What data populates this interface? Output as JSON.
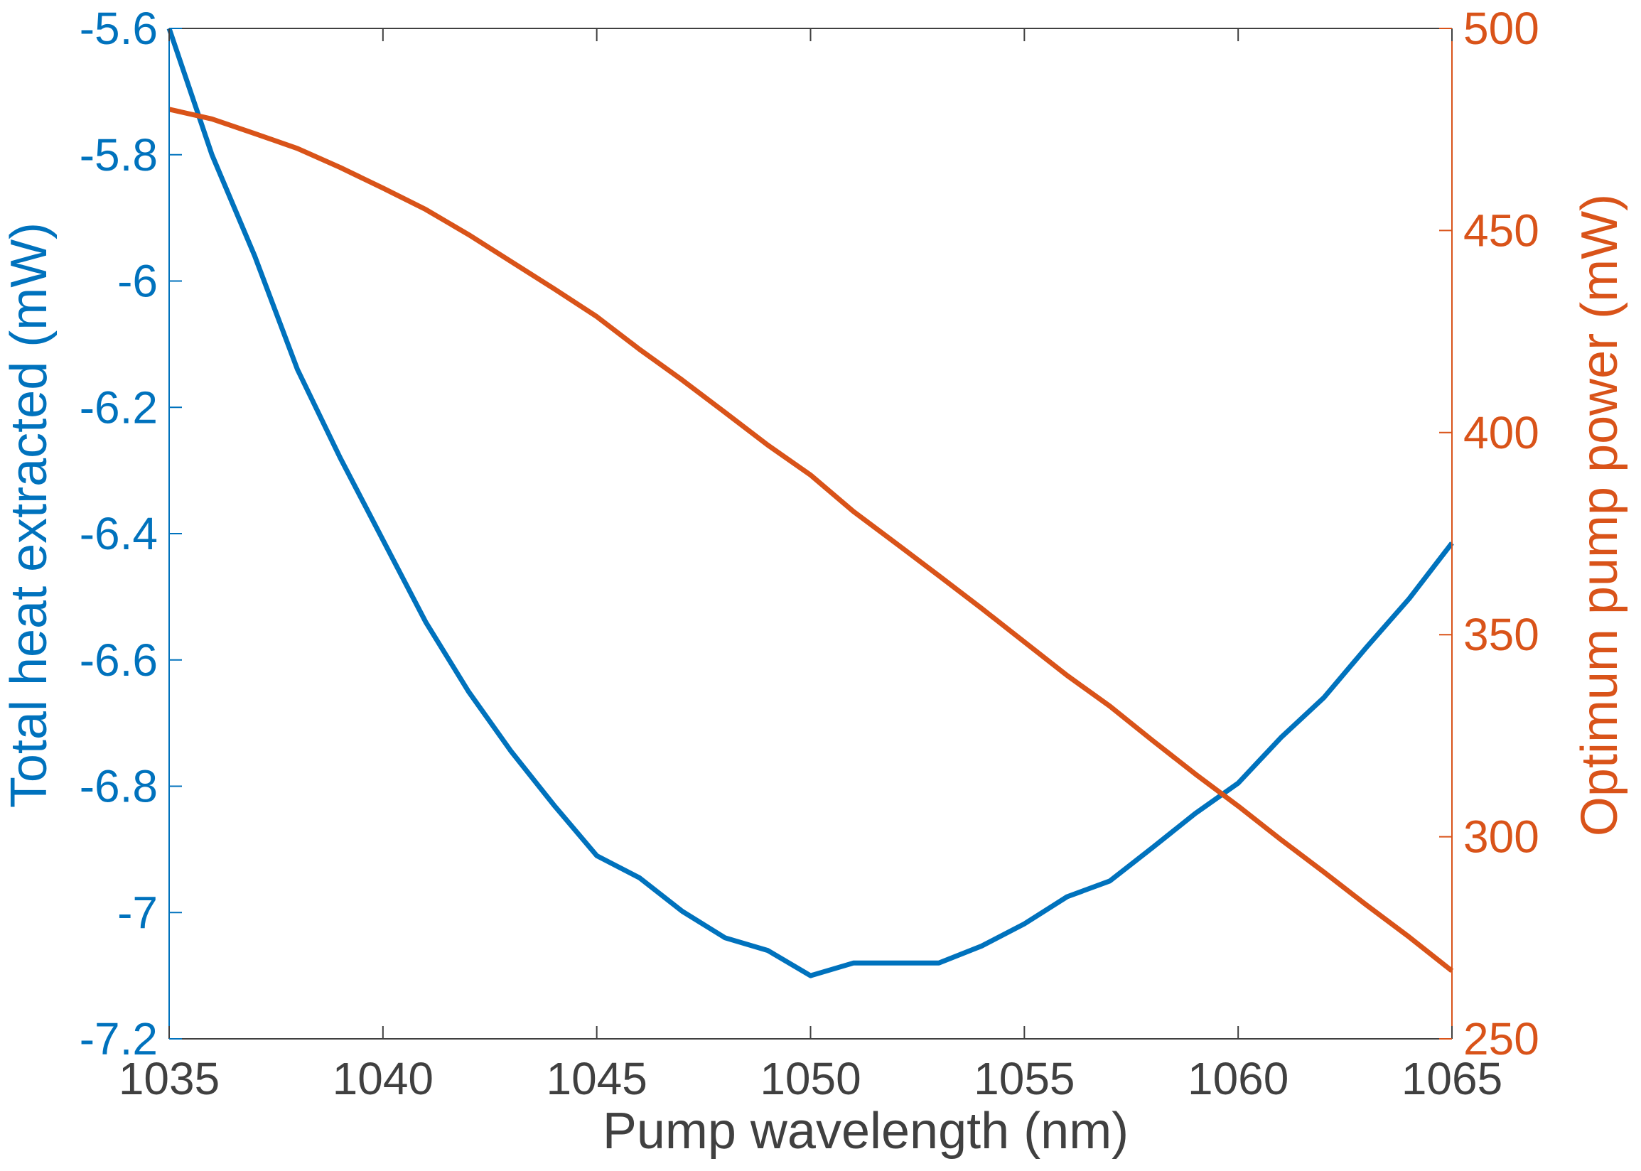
{
  "chart_data": {
    "type": "line",
    "title": "",
    "xlabel": "Pump wavelength (nm)",
    "ylabel_left": "Total heat extracted (mW)",
    "ylabel_right": "Optimum pump power (mW)",
    "xlim": [
      1035,
      1065
    ],
    "ylim_left": [
      -7.2,
      -5.6
    ],
    "ylim_right": [
      250,
      500
    ],
    "xticks": [
      1035,
      1040,
      1045,
      1050,
      1055,
      1060,
      1065
    ],
    "yticks_left": [
      -7.2,
      -7,
      -6.8,
      -6.6,
      -6.4,
      -6.2,
      -6,
      -5.8,
      -5.6
    ],
    "yticks_right": [
      250,
      300,
      350,
      400,
      450,
      500
    ],
    "xtick_labels": [
      "1035",
      "1040",
      "1045",
      "1050",
      "1055",
      "1060",
      "1065"
    ],
    "ytick_labels_left": [
      "-7.2",
      "-7",
      "-6.8",
      "-6.6",
      "-6.4",
      "-6.2",
      "-6",
      "-5.8",
      "-5.6"
    ],
    "ytick_labels_right": [
      "250",
      "300",
      "350",
      "400",
      "450",
      "500"
    ],
    "grid": false,
    "legend": "none",
    "colors": {
      "left_axis": "#0072BD",
      "right_axis": "#D95319",
      "x_axis": "#404040"
    },
    "series": [
      {
        "axis": "left",
        "color": "#0072BD",
        "x": [
          1035,
          1036,
          1037,
          1038,
          1039,
          1040,
          1041,
          1042,
          1043,
          1044,
          1045,
          1046,
          1047,
          1048,
          1049,
          1050,
          1051,
          1052,
          1053,
          1054,
          1055,
          1056,
          1057,
          1058,
          1059,
          1060,
          1061,
          1062,
          1063,
          1064,
          1065
        ],
        "y": [
          -5.6,
          -5.8,
          -5.96,
          -6.14,
          -6.28,
          -6.41,
          -6.54,
          -6.65,
          -6.745,
          -6.83,
          -6.91,
          -6.945,
          -6.998,
          -7.04,
          -7.06,
          -7.1,
          -7.08,
          -7.08,
          -7.08,
          -7.053,
          -7.018,
          -6.975,
          -6.95,
          -6.897,
          -6.843,
          -6.795,
          -6.723,
          -6.66,
          -6.58,
          -6.503,
          -6.415
        ]
      },
      {
        "axis": "right",
        "color": "#D95319",
        "x": [
          1035,
          1036,
          1037,
          1038,
          1039,
          1040,
          1041,
          1042,
          1043,
          1044,
          1045,
          1046,
          1047,
          1048,
          1049,
          1050,
          1051,
          1052,
          1053,
          1054,
          1055,
          1056,
          1057,
          1058,
          1059,
          1060,
          1061,
          1062,
          1063,
          1064,
          1065
        ],
        "y": [
          480,
          477.6,
          474,
          470.3,
          465.6,
          460.5,
          455.2,
          449,
          442.3,
          435.6,
          428.7,
          420.6,
          413,
          405,
          396.9,
          389.5,
          380.5,
          372.6,
          364.6,
          356.5,
          348.2,
          339.9,
          332.3,
          323.8,
          315.5,
          307.6,
          299.3,
          291.3,
          283.1,
          275.2,
          266.8
        ]
      }
    ]
  }
}
